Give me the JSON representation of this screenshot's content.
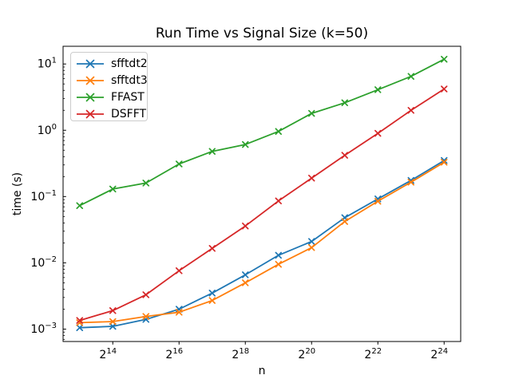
{
  "title": "Run Time vs Signal Size (k=50)",
  "chart_data": {
    "type": "line",
    "title": "Run Time vs Signal Size (k=50)",
    "xlabel": "n",
    "ylabel": "time (s)",
    "x_scale": "powers-of-2",
    "y_scale": "log10",
    "grid": false,
    "marker": "x",
    "legend_position": "upper left",
    "x_exponents": [
      13,
      14,
      15,
      16,
      17,
      18,
      19,
      20,
      21,
      22,
      23,
      24
    ],
    "x_tick_exponents": [
      14,
      16,
      18,
      20,
      22,
      24
    ],
    "x_tick_labels": [
      "2^14",
      "2^16",
      "2^18",
      "2^20",
      "2^22",
      "2^24"
    ],
    "y_tick_exponents": [
      1,
      0,
      -1,
      -2,
      -3
    ],
    "y_tick_labels": [
      "10^1",
      "10^0",
      "10^-1",
      "10^-2",
      "10^-3"
    ],
    "xlim_exponents": [
      12.5,
      24.5
    ],
    "ylim": [
      0.00065,
      18.5
    ],
    "series": [
      {
        "name": "sfftdt2",
        "color": "#1f77b4",
        "values": [
          0.00105,
          0.0011,
          0.0014,
          0.002,
          0.0035,
          0.0066,
          0.013,
          0.021,
          0.048,
          0.092,
          0.175,
          0.35
        ]
      },
      {
        "name": "sfftdt3",
        "color": "#ff7f0e",
        "values": [
          0.00125,
          0.0013,
          0.00155,
          0.0018,
          0.0027,
          0.005,
          0.0095,
          0.017,
          0.042,
          0.085,
          0.165,
          0.33
        ]
      },
      {
        "name": "FFAST",
        "color": "#2ca02c",
        "values": [
          0.073,
          0.13,
          0.16,
          0.31,
          0.48,
          0.61,
          0.96,
          1.8,
          2.6,
          4.1,
          6.5,
          11.8
        ]
      },
      {
        "name": "DSFFT",
        "color": "#d62728",
        "values": [
          0.00135,
          0.0019,
          0.0033,
          0.0076,
          0.0165,
          0.036,
          0.086,
          0.19,
          0.42,
          0.9,
          2.0,
          4.2
        ]
      }
    ],
    "colors": {
      "spine": "#000000",
      "tick_label": "#000000",
      "legend_border": "#cccccc",
      "background": "#ffffff"
    }
  }
}
